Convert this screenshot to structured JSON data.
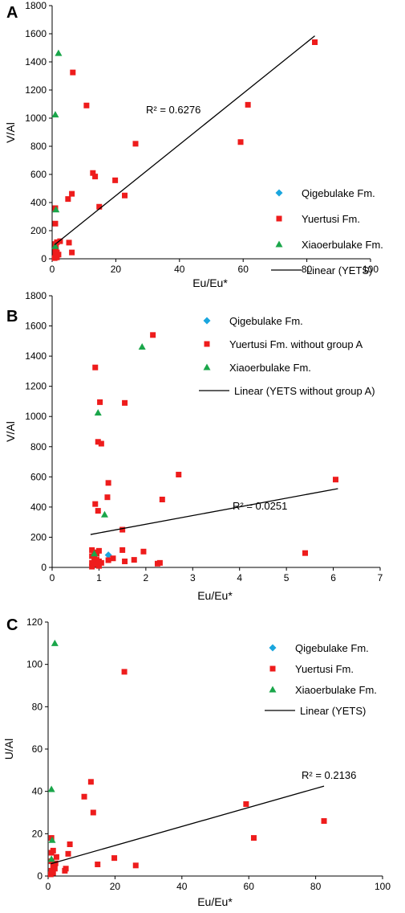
{
  "colors": {
    "qigebulake": "#1aa6de",
    "yuertusi": "#ee1c1c",
    "xiaoerbulake": "#1aa64a",
    "trend": "#000000"
  },
  "chart_data": [
    {
      "panel": "A",
      "type": "scatter",
      "xlabel": "Eu/Eu*",
      "ylabel": "V/Al",
      "xlim": [
        0,
        100
      ],
      "ylim": [
        0,
        1800
      ],
      "xticks": [
        "0",
        "20",
        "40",
        "60",
        "80",
        "100"
      ],
      "yticks": [
        "0",
        "200",
        "400",
        "600",
        "800",
        "1000",
        "1200",
        "1400",
        "1600",
        "1800"
      ],
      "grid": false,
      "legend_position": "bottom-right",
      "annotation": "R² = 0.6276",
      "series": [
        {
          "name": "Qigebulake Fm.",
          "marker": "diamond",
          "color": "#1aa6de",
          "points": []
        },
        {
          "name": "Yuertusi Fm.",
          "marker": "square",
          "color": "#ee1c1c",
          "points": [
            [
              82.5,
              1540
            ],
            [
              61.5,
              1095
            ],
            [
              59.2,
              830
            ],
            [
              26.2,
              818
            ],
            [
              19.8,
              558
            ],
            [
              22.8,
              450
            ],
            [
              6.5,
              1325
            ],
            [
              10.8,
              1090
            ],
            [
              12.8,
              610
            ],
            [
              13.5,
              585
            ],
            [
              14.8,
              370
            ],
            [
              6.2,
              462
            ],
            [
              5.0,
              425
            ],
            [
              5.3,
              115
            ],
            [
              6.2,
              45
            ],
            [
              1.0,
              360
            ],
            [
              1.0,
              250
            ],
            [
              2.5,
              125
            ],
            [
              1.5,
              118
            ],
            [
              1.0,
              105
            ],
            [
              1.2,
              80
            ],
            [
              1.0,
              60
            ],
            [
              1.5,
              45
            ],
            [
              2.0,
              30
            ],
            [
              1.0,
              20
            ],
            [
              1.5,
              10
            ],
            [
              0.8,
              5
            ]
          ]
        },
        {
          "name": "Xiaoerbulake Fm.",
          "marker": "triangle",
          "color": "#1aa64a",
          "points": [
            [
              2.0,
              1462
            ],
            [
              1.0,
              1025
            ],
            [
              1.2,
              350
            ],
            [
              1.0,
              90
            ]
          ]
        },
        {
          "name": "Linear (YETS)",
          "type": "line",
          "color": "#000000",
          "points": [
            [
              0.8,
              100
            ],
            [
              82.5,
              1585
            ]
          ]
        }
      ]
    },
    {
      "panel": "B",
      "type": "scatter",
      "xlabel": "Eu/Eu*",
      "ylabel": "V/Al",
      "xlim": [
        0,
        7
      ],
      "ylim": [
        0,
        1800
      ],
      "xticks": [
        "0",
        "1",
        "2",
        "3",
        "4",
        "5",
        "6",
        "7"
      ],
      "yticks": [
        "0",
        "200",
        "400",
        "600",
        "800",
        "1000",
        "1200",
        "1400",
        "1600",
        "1800"
      ],
      "grid": false,
      "legend_position": "top-right",
      "annotation": "R² = 0.0251",
      "series": [
        {
          "name": "Qigebulake Fm.",
          "marker": "diamond",
          "color": "#1aa6de",
          "points": [
            [
              1.2,
              82
            ]
          ]
        },
        {
          "name": "Yuertusi Fm. without group A",
          "marker": "square",
          "color": "#ee1c1c",
          "points": [
            [
              2.15,
              1540
            ],
            [
              1.55,
              1090
            ],
            [
              0.92,
              1325
            ],
            [
              1.02,
              1095
            ],
            [
              0.98,
              832
            ],
            [
              1.05,
              820
            ],
            [
              2.7,
              615
            ],
            [
              1.2,
              560
            ],
            [
              1.18,
              465
            ],
            [
              2.35,
              450
            ],
            [
              0.92,
              420
            ],
            [
              0.98,
              375
            ],
            [
              1.5,
              250
            ],
            [
              6.05,
              582
            ],
            [
              5.4,
              95
            ],
            [
              1.95,
              105
            ],
            [
              1.5,
              115
            ],
            [
              1.3,
              60
            ],
            [
              1.75,
              50
            ],
            [
              1.2,
              48
            ],
            [
              1.55,
              40
            ],
            [
              1.05,
              30
            ],
            [
              2.3,
              30
            ],
            [
              2.25,
              25
            ],
            [
              0.85,
              115
            ],
            [
              0.9,
              100
            ],
            [
              0.95,
              90
            ],
            [
              0.85,
              75
            ],
            [
              0.9,
              60
            ],
            [
              0.95,
              50
            ],
            [
              1.0,
              40
            ],
            [
              0.85,
              30
            ],
            [
              0.9,
              20
            ],
            [
              1.0,
              10
            ],
            [
              0.85,
              5
            ],
            [
              1.0,
              110
            ]
          ]
        },
        {
          "name": "Xiaoerbulake Fm.",
          "marker": "triangle",
          "color": "#1aa64a",
          "points": [
            [
              1.92,
              1462
            ],
            [
              0.98,
              1025
            ],
            [
              1.12,
              350
            ],
            [
              0.9,
              92
            ]
          ]
        },
        {
          "name": "Linear (YETS without group A)",
          "type": "line",
          "color": "#000000",
          "points": [
            [
              0.82,
              218
            ],
            [
              6.1,
              522
            ]
          ]
        }
      ]
    },
    {
      "panel": "C",
      "type": "scatter",
      "xlabel": "Eu/Eu*",
      "ylabel": "U/Al",
      "xlim": [
        0,
        100
      ],
      "ylim": [
        0,
        120
      ],
      "xticks": [
        "0",
        "20",
        "40",
        "60",
        "80",
        "100"
      ],
      "yticks": [
        "0",
        "20",
        "40",
        "60",
        "80",
        "100",
        "120"
      ],
      "grid": false,
      "legend_position": "top-right",
      "annotation": "R² = 0.2136",
      "series": [
        {
          "name": "Qigebulake Fm.",
          "marker": "diamond",
          "color": "#1aa6de",
          "points": []
        },
        {
          "name": "Yuertusi Fm.",
          "marker": "square",
          "color": "#ee1c1c",
          "points": [
            [
              22.8,
              96.5
            ],
            [
              12.8,
              44.5
            ],
            [
              13.5,
              30
            ],
            [
              10.8,
              37.5
            ],
            [
              59.2,
              34
            ],
            [
              82.5,
              26
            ],
            [
              61.5,
              18
            ],
            [
              19.8,
              8.5
            ],
            [
              26.2,
              5
            ],
            [
              14.8,
              5.5
            ],
            [
              6.5,
              15
            ],
            [
              6.0,
              10.5
            ],
            [
              5.3,
              3.5
            ],
            [
              5.0,
              2.5
            ],
            [
              1.0,
              18
            ],
            [
              1.5,
              12
            ],
            [
              1.0,
              11
            ],
            [
              2.5,
              9
            ],
            [
              1.0,
              7
            ],
            [
              1.5,
              5
            ],
            [
              2.0,
              3.5
            ],
            [
              1.0,
              2.5
            ],
            [
              1.5,
              1.5
            ],
            [
              0.8,
              0.8
            ],
            [
              2.2,
              6
            ]
          ]
        },
        {
          "name": "Xiaoerbulake Fm.",
          "marker": "triangle",
          "color": "#1aa64a",
          "points": [
            [
              2.0,
              110
            ],
            [
              1.0,
              41
            ],
            [
              1.2,
              17
            ],
            [
              1.0,
              8
            ]
          ]
        },
        {
          "name": "Linear (YETS)",
          "type": "line",
          "color": "#000000",
          "points": [
            [
              0.8,
              5.8
            ],
            [
              82.5,
              42.5
            ]
          ]
        }
      ]
    }
  ]
}
